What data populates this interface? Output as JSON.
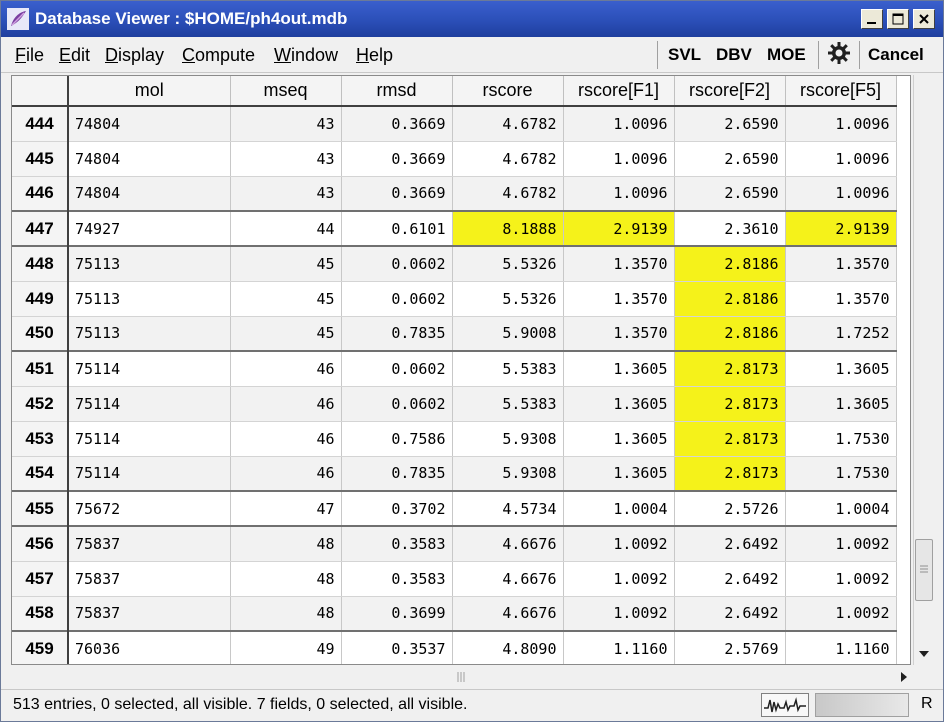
{
  "window": {
    "title": "Database Viewer : $HOME/ph4out.mdb"
  },
  "menu": {
    "items": [
      {
        "first": "F",
        "rest": "ile"
      },
      {
        "first": "E",
        "rest": "dit"
      },
      {
        "first": "D",
        "rest": "isplay"
      },
      {
        "first": "C",
        "rest": "ompute"
      },
      {
        "first": "W",
        "rest": "indow"
      },
      {
        "first": "H",
        "rest": "elp"
      }
    ],
    "tools": {
      "svl": "SVL",
      "dbv": "DBV",
      "moe": "MOE",
      "cancel": "Cancel"
    }
  },
  "table": {
    "columns": [
      "mol",
      "mseq",
      "rmsd",
      "rscore",
      "rscore[F1]",
      "rscore[F2]",
      "rscore[F5]"
    ],
    "rows": [
      {
        "id": "444",
        "cells": [
          "74804",
          "43",
          "0.3669",
          "4.6782",
          "1.0096",
          "2.6590",
          "1.0096"
        ],
        "hl": [],
        "alt": true,
        "grp": false
      },
      {
        "id": "445",
        "cells": [
          "74804",
          "43",
          "0.3669",
          "4.6782",
          "1.0096",
          "2.6590",
          "1.0096"
        ],
        "hl": [],
        "alt": false,
        "grp": false
      },
      {
        "id": "446",
        "cells": [
          "74804",
          "43",
          "0.3669",
          "4.6782",
          "1.0096",
          "2.6590",
          "1.0096"
        ],
        "hl": [],
        "alt": true,
        "grp": false
      },
      {
        "id": "447",
        "cells": [
          "74927",
          "44",
          "0.6101",
          "8.1888",
          "2.9139",
          "2.3610",
          "2.9139"
        ],
        "hl": [
          3,
          4,
          6
        ],
        "alt": false,
        "grp": true
      },
      {
        "id": "448",
        "cells": [
          "75113",
          "45",
          "0.0602",
          "5.5326",
          "1.3570",
          "2.8186",
          "1.3570"
        ],
        "hl": [
          5
        ],
        "alt": true,
        "grp": true
      },
      {
        "id": "449",
        "cells": [
          "75113",
          "45",
          "0.0602",
          "5.5326",
          "1.3570",
          "2.8186",
          "1.3570"
        ],
        "hl": [
          5
        ],
        "alt": false,
        "grp": false
      },
      {
        "id": "450",
        "cells": [
          "75113",
          "45",
          "0.7835",
          "5.9008",
          "1.3570",
          "2.8186",
          "1.7252"
        ],
        "hl": [
          5
        ],
        "alt": true,
        "grp": false
      },
      {
        "id": "451",
        "cells": [
          "75114",
          "46",
          "0.0602",
          "5.5383",
          "1.3605",
          "2.8173",
          "1.3605"
        ],
        "hl": [
          5
        ],
        "alt": false,
        "grp": true
      },
      {
        "id": "452",
        "cells": [
          "75114",
          "46",
          "0.0602",
          "5.5383",
          "1.3605",
          "2.8173",
          "1.3605"
        ],
        "hl": [
          5
        ],
        "alt": true,
        "grp": false
      },
      {
        "id": "453",
        "cells": [
          "75114",
          "46",
          "0.7586",
          "5.9308",
          "1.3605",
          "2.8173",
          "1.7530"
        ],
        "hl": [
          5
        ],
        "alt": false,
        "grp": false
      },
      {
        "id": "454",
        "cells": [
          "75114",
          "46",
          "0.7835",
          "5.9308",
          "1.3605",
          "2.8173",
          "1.7530"
        ],
        "hl": [
          5
        ],
        "alt": true,
        "grp": false
      },
      {
        "id": "455",
        "cells": [
          "75672",
          "47",
          "0.3702",
          "4.5734",
          "1.0004",
          "2.5726",
          "1.0004"
        ],
        "hl": [],
        "alt": false,
        "grp": true
      },
      {
        "id": "456",
        "cells": [
          "75837",
          "48",
          "0.3583",
          "4.6676",
          "1.0092",
          "2.6492",
          "1.0092"
        ],
        "hl": [],
        "alt": true,
        "grp": true
      },
      {
        "id": "457",
        "cells": [
          "75837",
          "48",
          "0.3583",
          "4.6676",
          "1.0092",
          "2.6492",
          "1.0092"
        ],
        "hl": [],
        "alt": false,
        "grp": false
      },
      {
        "id": "458",
        "cells": [
          "75837",
          "48",
          "0.3699",
          "4.6676",
          "1.0092",
          "2.6492",
          "1.0092"
        ],
        "hl": [],
        "alt": true,
        "grp": false
      },
      {
        "id": "459",
        "cells": [
          "76036",
          "49",
          "0.3537",
          "4.8090",
          "1.1160",
          "2.5769",
          "1.1160"
        ],
        "hl": [],
        "alt": false,
        "grp": true
      }
    ]
  },
  "status": {
    "text": "513 entries, 0 selected, all visible. 7 fields, 0 selected, all visible.",
    "right_label": "R"
  },
  "colors": {
    "highlight": "#f5f21a",
    "titlebar": "#2b4fb8"
  }
}
